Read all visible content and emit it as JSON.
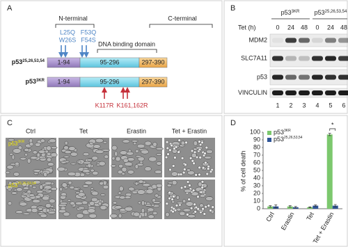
{
  "panel_a": {
    "label": "A",
    "n_terminal": "N-terminal",
    "c_terminal": "C-terminal",
    "dna_binding": "DNA binding domain",
    "mutations_top": [
      "L25Q",
      "F53Q",
      "W26S",
      "F54S"
    ],
    "mutations_bottom": [
      "K117R",
      "K161,162R"
    ],
    "constructs": [
      {
        "base": "p53",
        "sup": "25,26,53,54",
        "color": "#4f86c6",
        "domains": [
          "1-94",
          "95-296",
          "297-390"
        ]
      },
      {
        "base": "p53",
        "sup": "3KR",
        "color": "#c5303a",
        "domains": [
          "1-94",
          "95-296",
          "297-390"
        ]
      }
    ]
  },
  "panel_b": {
    "label": "B",
    "groups": [
      {
        "base": "p53",
        "sup": "3KR"
      },
      {
        "base": "p53",
        "sup": "25,26,53,54"
      }
    ],
    "tet_label": "Tet (h)",
    "tet_times": [
      0,
      24,
      48,
      0,
      24,
      48
    ],
    "proteins": [
      "MDM2",
      "SLC7A11",
      "p53",
      "VINCULIN"
    ],
    "lanes": [
      1,
      2,
      3,
      4,
      5,
      6
    ]
  },
  "panel_c": {
    "label": "C",
    "conditions": [
      "Ctrl",
      "Tet",
      "Erastin",
      "Tet + Erastin"
    ],
    "rows": [
      {
        "base": "p53",
        "sup": "3KR"
      },
      {
        "base": "p53",
        "sup": "25,26,53,54"
      }
    ]
  },
  "chart_data": {
    "type": "bar",
    "panel_label": "D",
    "y_label": "% of cell death",
    "categories": [
      "Ctrl",
      "Erastin",
      "Tet",
      "Tet + Erastin"
    ],
    "series": [
      {
        "name": "p53",
        "name_sup": "3KR",
        "color": "#7cc86e",
        "values": [
          3,
          3,
          2,
          97
        ],
        "errors": [
          1,
          1,
          0.5,
          1.5
        ]
      },
      {
        "name": "p53",
        "name_sup": "25,26,53,54",
        "color": "#2f5597",
        "values": [
          3,
          2,
          4,
          4
        ],
        "errors": [
          2,
          1,
          1,
          1.5
        ]
      }
    ],
    "ylim": [
      0,
      100
    ],
    "yticks": [
      0,
      10,
      20,
      30,
      40,
      50,
      60,
      70,
      80,
      90,
      100
    ],
    "annotation": "*"
  }
}
